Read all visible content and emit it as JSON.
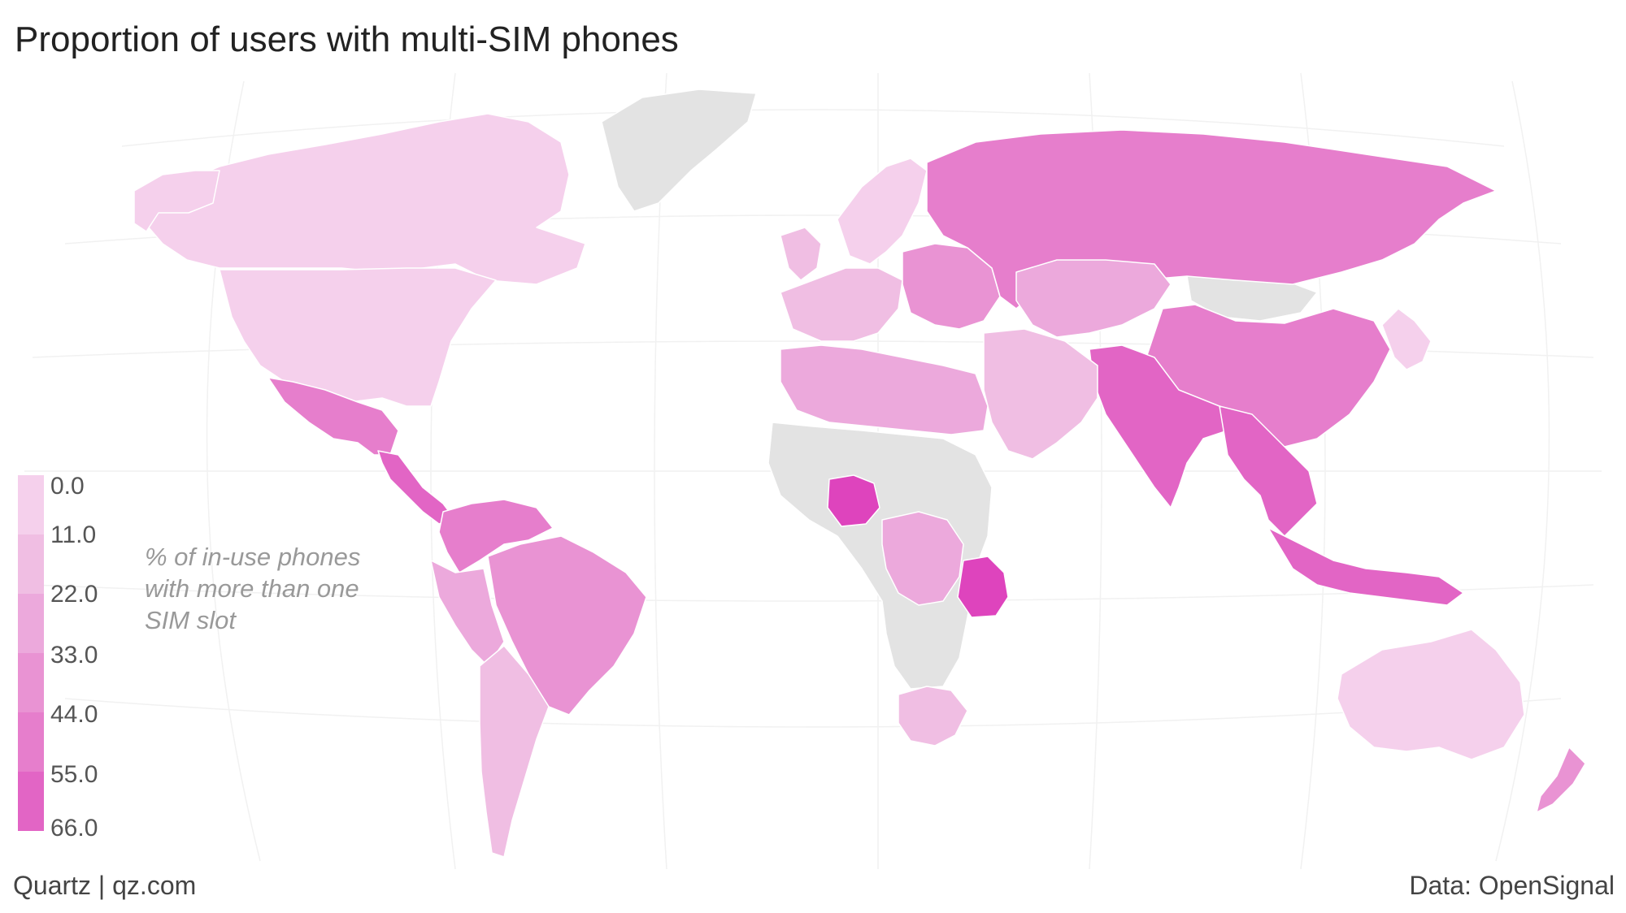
{
  "header": {
    "title": "Proportion of users with multi-SIM phones"
  },
  "legend": {
    "caption": "% of in-use phones with more than one SIM slot",
    "ticks": [
      "0.0",
      "11.0",
      "22.0",
      "33.0",
      "44.0",
      "55.0",
      "66.0"
    ],
    "colors": [
      "#f5d0ec",
      "#f0bee3",
      "#eca9dc",
      "#e993d3",
      "#e67ecc",
      "#e265c5",
      "#de44bd"
    ]
  },
  "footer": {
    "source_left": "Quartz | qz.com",
    "source_right": "Data: OpenSignal"
  },
  "colors": {
    "no_data": "#e3e3e3",
    "ocean": "#ffffff",
    "border": "#ffffff"
  },
  "countries": [
    {
      "name": "Canada",
      "bin": 0
    },
    {
      "name": "United States",
      "bin": 0
    },
    {
      "name": "Alaska",
      "bin": 0
    },
    {
      "name": "Greenland",
      "bin": -1
    },
    {
      "name": "Mexico",
      "bin": 4
    },
    {
      "name": "Central America",
      "bin": 5
    },
    {
      "name": "Venezuela / Colombia",
      "bin": 4
    },
    {
      "name": "Brazil",
      "bin": 3
    },
    {
      "name": "Peru / Ecuador",
      "bin": 2
    },
    {
      "name": "Chile / Argentina",
      "bin": 1
    },
    {
      "name": "Iceland / UK",
      "bin": 1
    },
    {
      "name": "Scandinavia",
      "bin": 0
    },
    {
      "name": "Western Europe",
      "bin": 1
    },
    {
      "name": "Eastern Europe",
      "bin": 3
    },
    {
      "name": "Russia",
      "bin": 4
    },
    {
      "name": "Kazakhstan / Central Asia",
      "bin": 2
    },
    {
      "name": "Mongolia",
      "bin": -1
    },
    {
      "name": "China",
      "bin": 4
    },
    {
      "name": "India / Pakistan",
      "bin": 5
    },
    {
      "name": "Southeast Asia",
      "bin": 5
    },
    {
      "name": "Indonesia",
      "bin": 5
    },
    {
      "name": "Japan / Korea",
      "bin": 0
    },
    {
      "name": "Middle East",
      "bin": 1
    },
    {
      "name": "North Africa",
      "bin": 2
    },
    {
      "name": "Nigeria",
      "bin": 6
    },
    {
      "name": "Tanzania",
      "bin": 6
    },
    {
      "name": "Central Africa",
      "bin": 2
    },
    {
      "name": "South Africa",
      "bin": 1
    },
    {
      "name": "Sub-Saharan (no data)",
      "bin": -1
    },
    {
      "name": "Australia",
      "bin": 0
    },
    {
      "name": "New Zealand",
      "bin": 3
    }
  ]
}
